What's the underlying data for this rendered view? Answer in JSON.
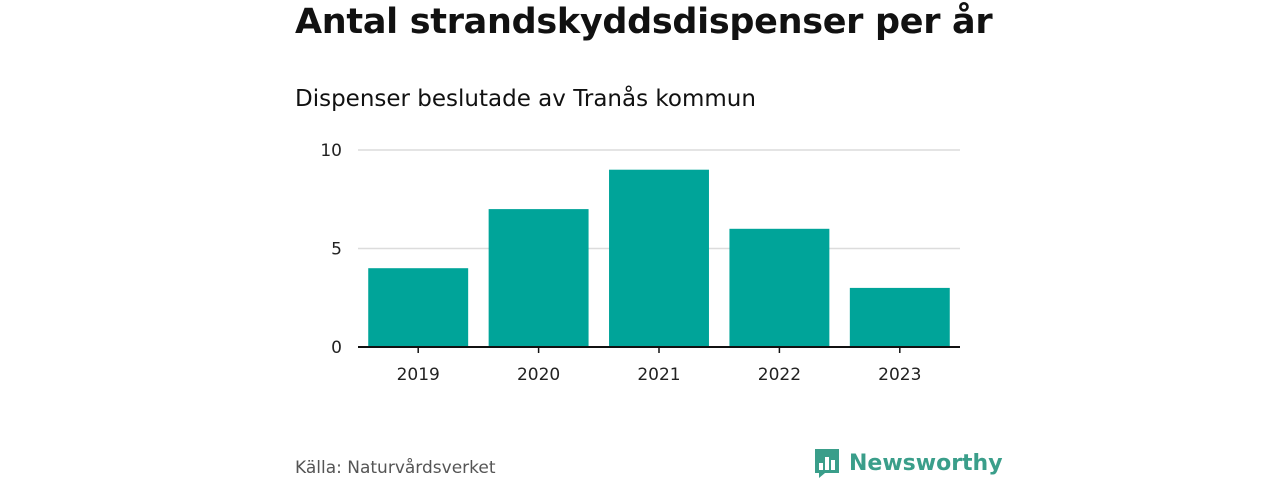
{
  "title": "Antal strandskyddsdispenser per år",
  "subtitle": "Dispenser beslutade av Tranås kommun",
  "source": "Källa: Naturvårdsverket",
  "brand": {
    "name": "Newsworthy",
    "color": "#3a9e8a",
    "icon": "bar-chart-speech-icon"
  },
  "colors": {
    "bar": "#00a499",
    "grid": "#dcdcdc",
    "axis": "#111111"
  },
  "chart_data": {
    "type": "bar",
    "title": "Antal strandskyddsdispenser per år",
    "subtitle": "Dispenser beslutade av Tranås kommun",
    "categories": [
      "2019",
      "2020",
      "2021",
      "2022",
      "2023"
    ],
    "values": [
      4,
      7,
      9,
      6,
      3
    ],
    "xlabel": "",
    "ylabel": "",
    "ylim": [
      0,
      10
    ],
    "yticks": [
      0,
      5,
      10
    ],
    "grid": true,
    "legend": "none"
  }
}
